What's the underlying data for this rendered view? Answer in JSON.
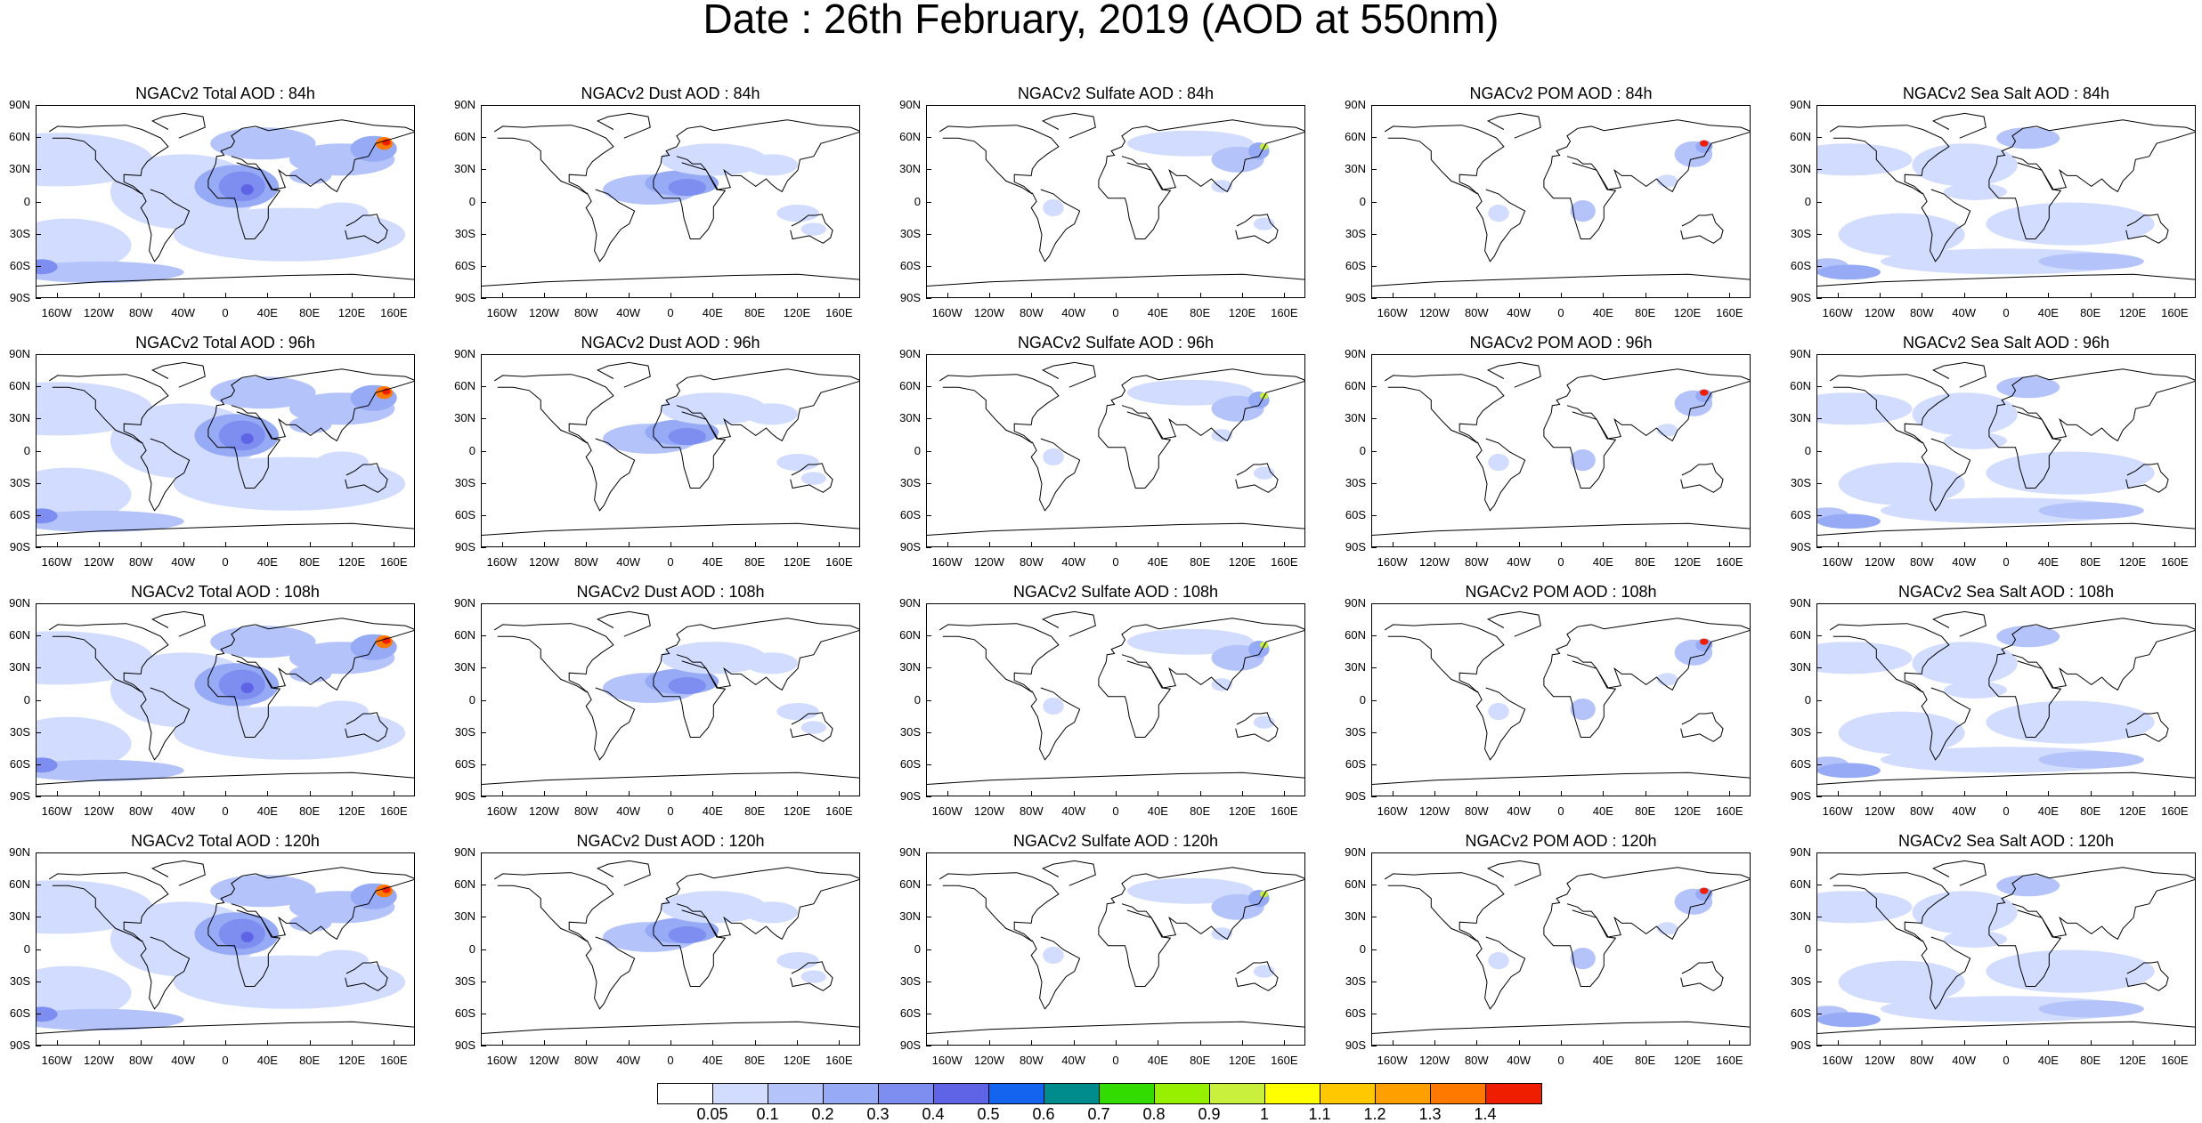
{
  "title": "Date : 26th February, 2019 (AOD at 550nm)",
  "lat_ticks": [
    "90N",
    "60N",
    "30N",
    "0",
    "30S",
    "60S",
    "90S"
  ],
  "lon_ticks": [
    "160W",
    "120W",
    "80W",
    "40W",
    "0",
    "40E",
    "80E",
    "120E",
    "160E"
  ],
  "rows": [
    "84h",
    "96h",
    "108h",
    "120h"
  ],
  "panel_titles": [
    [
      "NGACv2 Total AOD : 84h",
      "NGACv2 Dust AOD : 84h",
      "NGACv2 Sulfate AOD : 84h",
      "NGACv2 POM AOD : 84h",
      "NGACv2 Sea Salt AOD : 84h"
    ],
    [
      "NGACv2 Total AOD : 96h",
      "NGACv2 Dust AOD : 96h",
      "NGACv2 Sulfate AOD : 96h",
      "NGACv2 POM AOD : 96h",
      "NGACv2 Sea Salt AOD : 96h"
    ],
    [
      "NGACv2 Total AOD : 108h",
      "NGACv2 Dust AOD : 108h",
      "NGACv2 Sulfate AOD : 108h",
      "NGACv2 POM AOD : 108h",
      "NGACv2 Sea Salt AOD : 108h"
    ],
    [
      "NGACv2 Total AOD : 120h",
      "NGACv2 Dust AOD : 120h",
      "NGACv2 Sulfate AOD : 120h",
      "NGACv2 POM AOD : 120h",
      "NGACv2 Sea Salt  AOD : 120h"
    ]
  ],
  "colorbar": {
    "labels": [
      "0.05",
      "0.1",
      "0.2",
      "0.3",
      "0.4",
      "0.5",
      "0.6",
      "0.7",
      "0.8",
      "0.9",
      "1",
      "1.1",
      "1.2",
      "1.3",
      "1.4"
    ],
    "colors": [
      "#ffffff",
      "#d2dcff",
      "#b4c4fb",
      "#96aaf5",
      "#7d8ef0",
      "#5f64e6",
      "#1464f0",
      "#008c8c",
      "#32dc00",
      "#96f000",
      "#c8f03c",
      "#ffff00",
      "#ffc800",
      "#ffa000",
      "#ff7800",
      "#f01e00"
    ]
  }
}
